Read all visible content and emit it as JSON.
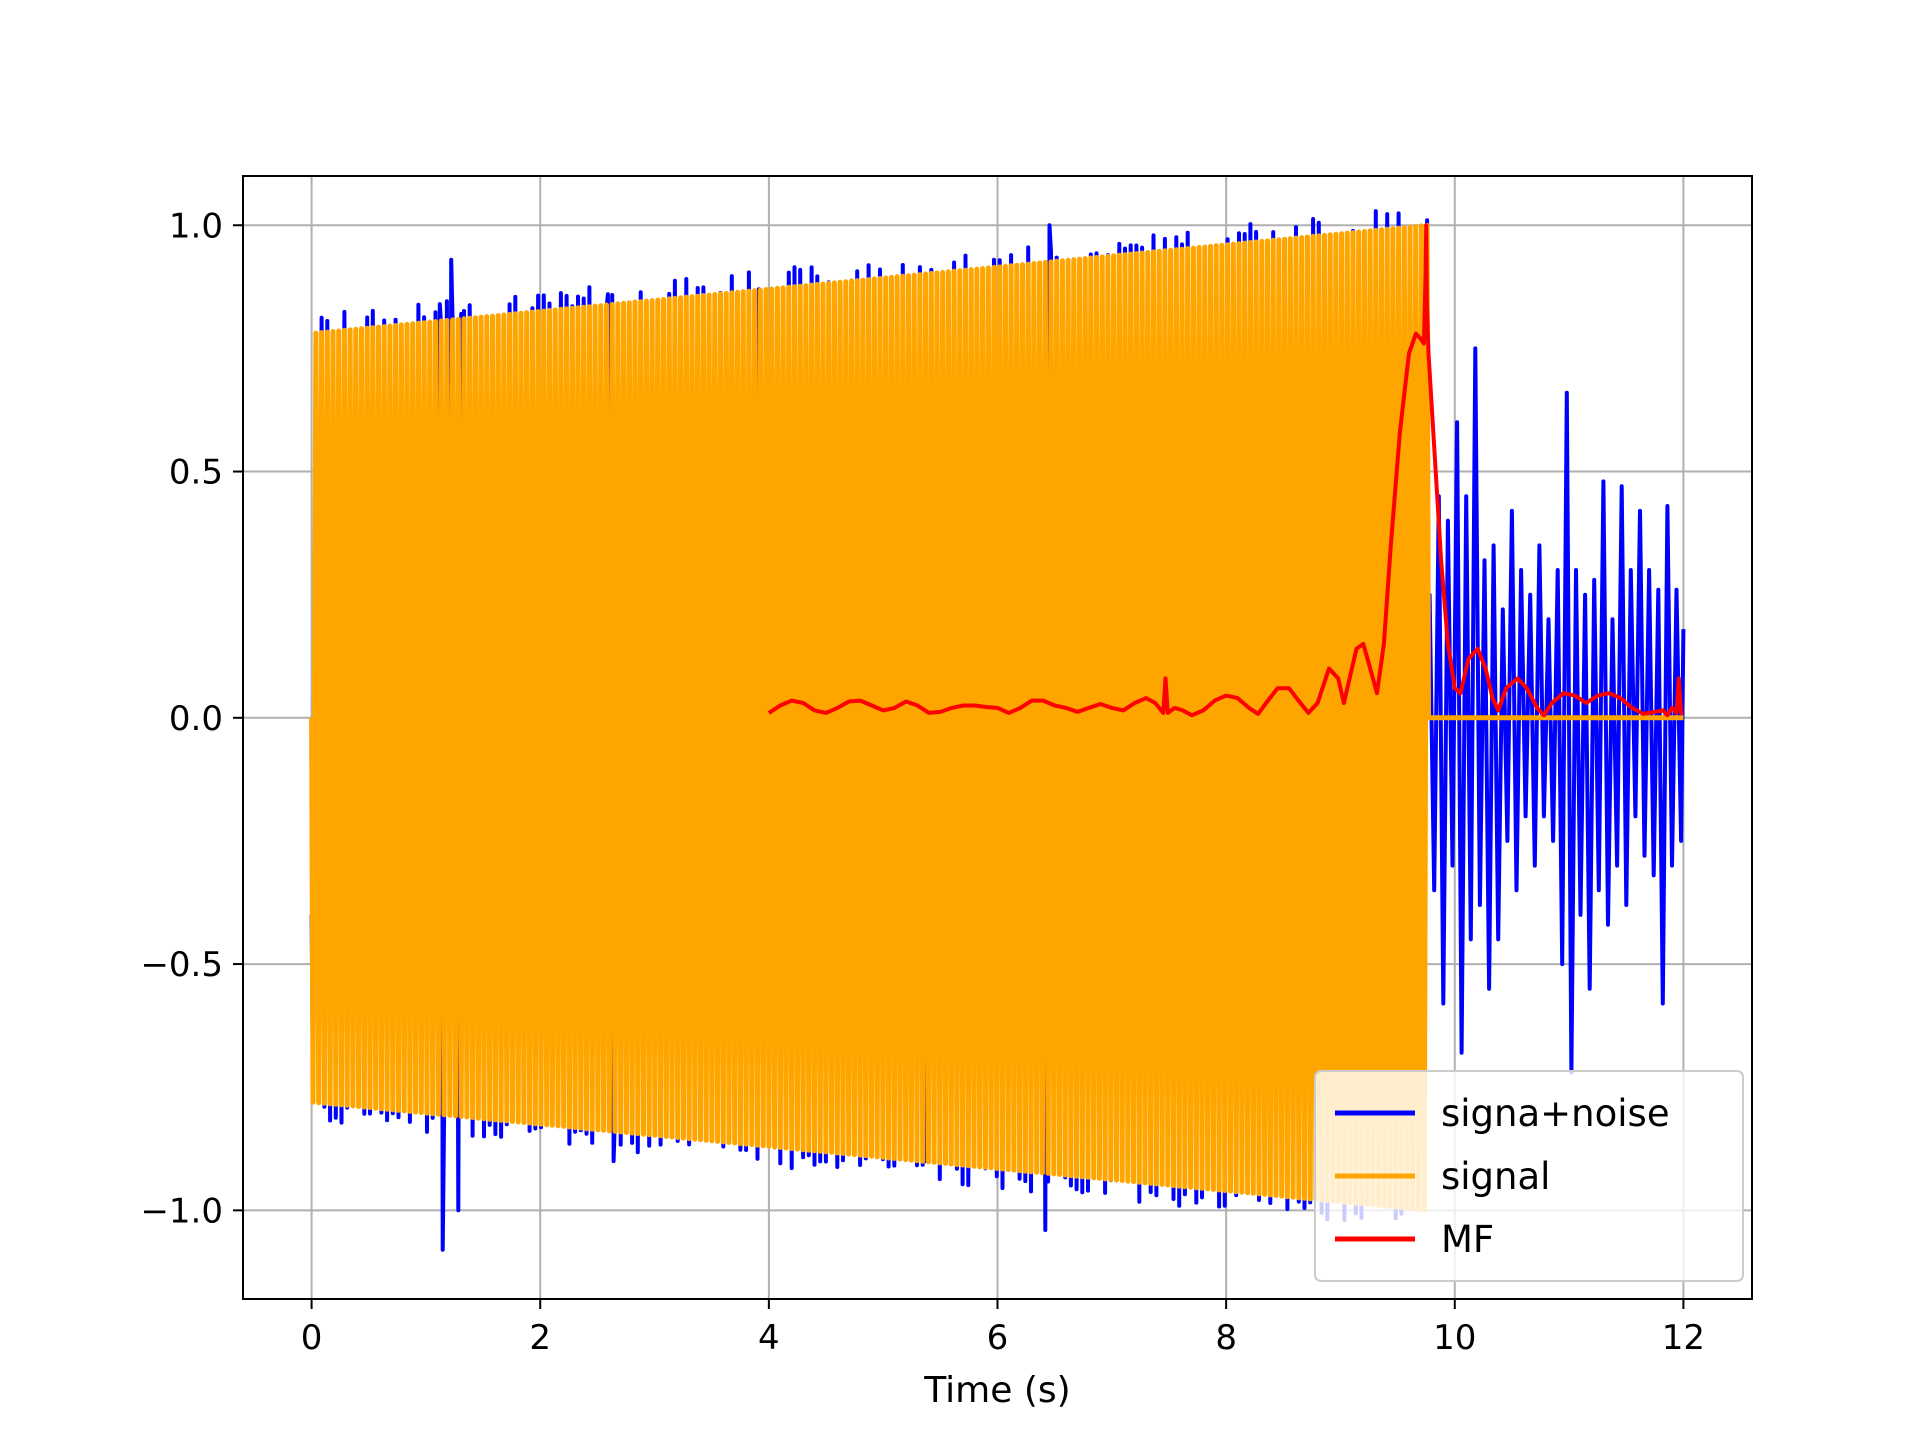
{
  "chart_data": {
    "type": "line",
    "title": "",
    "xlabel": "Time (s)",
    "ylabel": "",
    "xlim": [
      -0.6,
      12.6
    ],
    "ylim": [
      -1.18,
      1.1
    ],
    "grid": true,
    "legend_position": "lower-right",
    "x_ticks": [
      0,
      2,
      4,
      6,
      8,
      10,
      12
    ],
    "x_tick_labels": [
      "0",
      "2",
      "4",
      "6",
      "8",
      "10",
      "12"
    ],
    "y_ticks": [
      1.0,
      0.5,
      0.0,
      -0.5,
      -1.0
    ],
    "y_tick_labels": [
      "1.0",
      "0.5",
      "0.0",
      "−0.5",
      "−1.0"
    ],
    "series": [
      {
        "name": "signa+noise",
        "color": "#0000ff",
        "description": "chirp signal plus noise from 0 to 12 s; after ~9.75 s noise only",
        "signal_end": 9.77,
        "noise_tail_points": [
          [
            9.78,
            0.25
          ],
          [
            9.82,
            -0.35
          ],
          [
            9.86,
            0.45
          ],
          [
            9.9,
            -0.58
          ],
          [
            9.94,
            0.4
          ],
          [
            9.98,
            -0.3
          ],
          [
            10.02,
            0.6
          ],
          [
            10.06,
            -0.68
          ],
          [
            10.1,
            0.45
          ],
          [
            10.14,
            -0.45
          ],
          [
            10.18,
            0.75
          ],
          [
            10.22,
            -0.38
          ],
          [
            10.26,
            0.32
          ],
          [
            10.3,
            -0.55
          ],
          [
            10.34,
            0.35
          ],
          [
            10.38,
            -0.45
          ],
          [
            10.42,
            0.22
          ],
          [
            10.46,
            -0.25
          ],
          [
            10.5,
            0.42
          ],
          [
            10.54,
            -0.35
          ],
          [
            10.58,
            0.3
          ],
          [
            10.62,
            -0.2
          ],
          [
            10.66,
            0.25
          ],
          [
            10.7,
            -0.3
          ],
          [
            10.74,
            0.35
          ],
          [
            10.78,
            -0.2
          ],
          [
            10.82,
            0.2
          ],
          [
            10.86,
            -0.25
          ],
          [
            10.9,
            0.3
          ],
          [
            10.94,
            -0.5
          ],
          [
            10.98,
            0.66
          ],
          [
            11.02,
            -0.72
          ],
          [
            11.06,
            0.3
          ],
          [
            11.1,
            -0.4
          ],
          [
            11.14,
            0.25
          ],
          [
            11.18,
            -0.55
          ],
          [
            11.22,
            0.28
          ],
          [
            11.26,
            -0.35
          ],
          [
            11.3,
            0.48
          ],
          [
            11.34,
            -0.42
          ],
          [
            11.38,
            0.2
          ],
          [
            11.42,
            -0.3
          ],
          [
            11.46,
            0.47
          ],
          [
            11.5,
            -0.38
          ],
          [
            11.54,
            0.3
          ],
          [
            11.58,
            -0.2
          ],
          [
            11.62,
            0.42
          ],
          [
            11.66,
            -0.28
          ],
          [
            11.7,
            0.3
          ],
          [
            11.74,
            -0.32
          ],
          [
            11.78,
            0.26
          ],
          [
            11.82,
            -0.58
          ],
          [
            11.86,
            0.43
          ],
          [
            11.9,
            -0.3
          ],
          [
            11.94,
            0.26
          ],
          [
            11.98,
            -0.25
          ],
          [
            12.0,
            0.18
          ]
        ],
        "noise_spikes": [
          [
            0.0,
            0.15
          ],
          [
            0.0,
            -0.4
          ],
          [
            1.12,
            0.84
          ],
          [
            1.15,
            -1.08
          ],
          [
            1.22,
            0.93
          ],
          [
            1.28,
            -1.0
          ],
          [
            1.31,
            0.82
          ],
          [
            2.59,
            0.86
          ],
          [
            2.64,
            -0.9
          ],
          [
            3.91,
            0.87
          ],
          [
            5.37,
            -0.9
          ],
          [
            6.42,
            -1.04
          ],
          [
            6.46,
            1.0
          ]
        ]
      },
      {
        "name": "signal",
        "color": "#ffa500",
        "description": "linear chirp with amplitude rising from 0.78 to 1.0 between 0 and 9.77 s, zero afterwards",
        "t_start": 0.0,
        "t_end": 9.77,
        "amp_start": 0.78,
        "amp_end": 1.0,
        "cycles": 196,
        "zero_after": [
          9.77,
          12.0
        ]
      },
      {
        "name": "MF",
        "color": "#ff0000",
        "description": "matched filter output",
        "points": [
          [
            4.0,
            0.01
          ],
          [
            4.1,
            0.025
          ],
          [
            4.2,
            0.035
          ],
          [
            4.3,
            0.03
          ],
          [
            4.4,
            0.015
          ],
          [
            4.5,
            0.01
          ],
          [
            4.6,
            0.02
          ],
          [
            4.7,
            0.033
          ],
          [
            4.8,
            0.035
          ],
          [
            4.9,
            0.025
          ],
          [
            5.0,
            0.015
          ],
          [
            5.1,
            0.02
          ],
          [
            5.2,
            0.033
          ],
          [
            5.3,
            0.025
          ],
          [
            5.4,
            0.01
          ],
          [
            5.5,
            0.012
          ],
          [
            5.6,
            0.02
          ],
          [
            5.7,
            0.025
          ],
          [
            5.8,
            0.025
          ],
          [
            5.9,
            0.022
          ],
          [
            6.0,
            0.02
          ],
          [
            6.1,
            0.01
          ],
          [
            6.2,
            0.02
          ],
          [
            6.3,
            0.035
          ],
          [
            6.4,
            0.035
          ],
          [
            6.5,
            0.025
          ],
          [
            6.6,
            0.02
          ],
          [
            6.7,
            0.012
          ],
          [
            6.8,
            0.02
          ],
          [
            6.9,
            0.028
          ],
          [
            7.0,
            0.02
          ],
          [
            7.1,
            0.015
          ],
          [
            7.2,
            0.03
          ],
          [
            7.3,
            0.04
          ],
          [
            7.38,
            0.03
          ],
          [
            7.45,
            0.01
          ],
          [
            7.47,
            0.08
          ],
          [
            7.49,
            0.01
          ],
          [
            7.55,
            0.02
          ],
          [
            7.62,
            0.015
          ],
          [
            7.7,
            0.005
          ],
          [
            7.8,
            0.015
          ],
          [
            7.9,
            0.035
          ],
          [
            8.0,
            0.045
          ],
          [
            8.1,
            0.04
          ],
          [
            8.2,
            0.02
          ],
          [
            8.28,
            0.008
          ],
          [
            8.35,
            0.03
          ],
          [
            8.45,
            0.06
          ],
          [
            8.55,
            0.06
          ],
          [
            8.65,
            0.03
          ],
          [
            8.72,
            0.01
          ],
          [
            8.8,
            0.03
          ],
          [
            8.9,
            0.1
          ],
          [
            8.98,
            0.08
          ],
          [
            9.03,
            0.03
          ],
          [
            9.08,
            0.08
          ],
          [
            9.14,
            0.14
          ],
          [
            9.2,
            0.15
          ],
          [
            9.26,
            0.1
          ],
          [
            9.32,
            0.05
          ],
          [
            9.38,
            0.15
          ],
          [
            9.44,
            0.35
          ],
          [
            9.52,
            0.58
          ],
          [
            9.6,
            0.74
          ],
          [
            9.66,
            0.78
          ],
          [
            9.7,
            0.77
          ],
          [
            9.73,
            0.76
          ],
          [
            9.745,
            0.9
          ],
          [
            9.75,
            1.0
          ],
          [
            9.755,
            0.85
          ],
          [
            9.77,
            0.74
          ],
          [
            9.82,
            0.55
          ],
          [
            9.88,
            0.32
          ],
          [
            9.94,
            0.15
          ],
          [
            10.0,
            0.06
          ],
          [
            10.05,
            0.05
          ],
          [
            10.12,
            0.12
          ],
          [
            10.2,
            0.14
          ],
          [
            10.27,
            0.1
          ],
          [
            10.33,
            0.04
          ],
          [
            10.38,
            0.015
          ],
          [
            10.45,
            0.06
          ],
          [
            10.55,
            0.08
          ],
          [
            10.63,
            0.06
          ],
          [
            10.72,
            0.02
          ],
          [
            10.78,
            0.005
          ],
          [
            10.85,
            0.03
          ],
          [
            10.95,
            0.05
          ],
          [
            11.05,
            0.045
          ],
          [
            11.15,
            0.03
          ],
          [
            11.25,
            0.045
          ],
          [
            11.35,
            0.05
          ],
          [
            11.45,
            0.04
          ],
          [
            11.55,
            0.02
          ],
          [
            11.65,
            0.008
          ],
          [
            11.75,
            0.012
          ],
          [
            11.82,
            0.015
          ],
          [
            11.86,
            0.005
          ],
          [
            11.9,
            0.02
          ],
          [
            11.94,
            0.01
          ],
          [
            11.96,
            0.08
          ],
          [
            11.98,
            0.01
          ],
          [
            12.0,
            0.01
          ]
        ]
      }
    ]
  }
}
